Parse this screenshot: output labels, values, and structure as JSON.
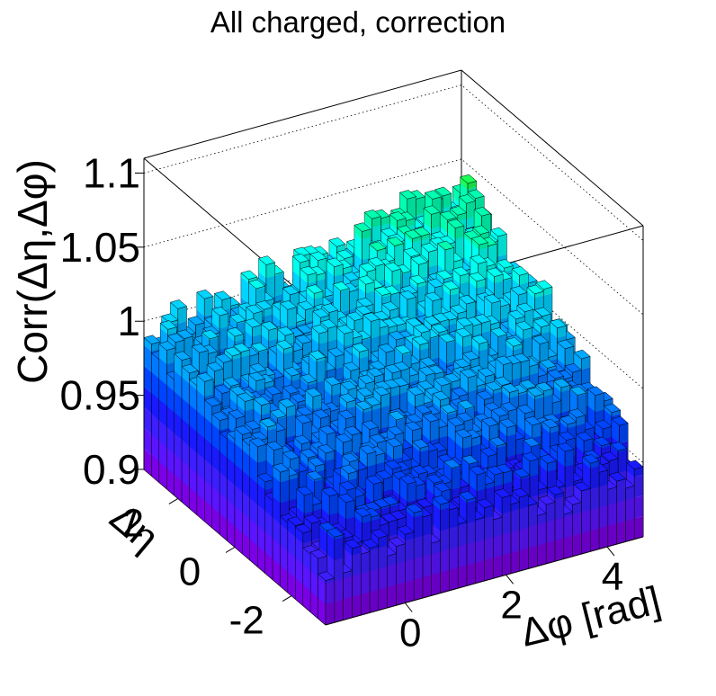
{
  "chart_data": {
    "type": "lego3d",
    "title": "All charged, correction",
    "xlabel": "Δφ [rad]",
    "ylabel": "Δη",
    "zlabel": "Corr(Δη,Δφ)",
    "xlim": [
      -1.5708,
      4.7124
    ],
    "ylim": [
      -3.2,
      3.2
    ],
    "zlim": [
      0.9,
      1.11
    ],
    "x_ticks": [
      "0",
      "2",
      "4"
    ],
    "x_tick_values": [
      0,
      2,
      4
    ],
    "y_ticks": [
      "-2",
      "0",
      "2"
    ],
    "y_tick_values": [
      -2,
      0,
      2
    ],
    "z_ticks": [
      "0.9",
      "0.95",
      "1",
      "1.05",
      "1.1"
    ],
    "z_tick_values": [
      0.9,
      0.95,
      1.0,
      1.05,
      1.1
    ],
    "n_x_bins": 36,
    "n_y_bins": 24,
    "surface_model": {
      "description": "Correction factor surface: near-unity plateau with small fluctuations",
      "back_left_edge_value": 0.99,
      "back_right_edge_value": 1.035,
      "front_edge_value": 0.945,
      "typical_range": [
        0.94,
        1.04
      ]
    },
    "grid": true,
    "palette": [
      "#7a00e6",
      "#5a14ff",
      "#3c1eff",
      "#1a1aff",
      "#0044ff",
      "#0078ff",
      "#00a8ff",
      "#00d4ff",
      "#00ffef",
      "#00ffb0",
      "#19ff55",
      "#39ff00",
      "#7dff00",
      "#c0ff00",
      "#f0ff00"
    ]
  }
}
